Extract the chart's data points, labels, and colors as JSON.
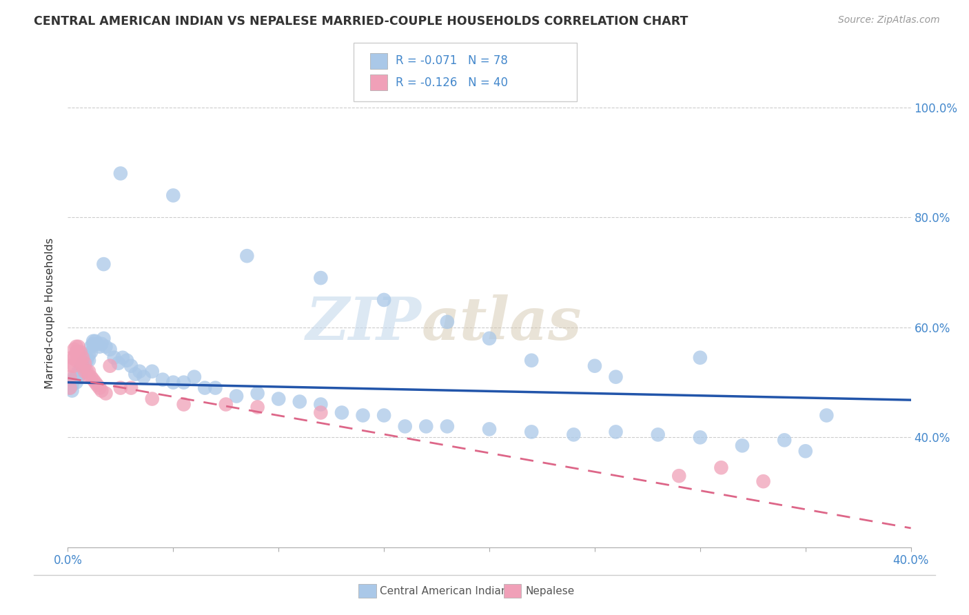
{
  "title": "CENTRAL AMERICAN INDIAN VS NEPALESE MARRIED-COUPLE HOUSEHOLDS CORRELATION CHART",
  "source": "Source: ZipAtlas.com",
  "ylabel": "Married-couple Households",
  "legend_blue_r": "-0.071",
  "legend_blue_n": "78",
  "legend_pink_r": "-0.126",
  "legend_pink_n": "40",
  "footer_blue": "Central American Indians",
  "footer_pink": "Nepalese",
  "blue_scatter_color": "#aac8e8",
  "pink_scatter_color": "#f0a0b8",
  "blue_line_color": "#2255aa",
  "pink_line_color": "#dd6688",
  "text_color_blue": "#4488cc",
  "watermark_zip": "ZIP",
  "watermark_atlas": "atlas",
  "blue_x": [
    0.001,
    0.002,
    0.002,
    0.003,
    0.003,
    0.004,
    0.004,
    0.005,
    0.005,
    0.006,
    0.006,
    0.007,
    0.007,
    0.008,
    0.008,
    0.009,
    0.009,
    0.01,
    0.01,
    0.011,
    0.011,
    0.012,
    0.012,
    0.013,
    0.014,
    0.015,
    0.016,
    0.017,
    0.018,
    0.02,
    0.022,
    0.024,
    0.026,
    0.028,
    0.03,
    0.032,
    0.034,
    0.036,
    0.04,
    0.045,
    0.05,
    0.055,
    0.06,
    0.065,
    0.07,
    0.08,
    0.09,
    0.1,
    0.11,
    0.12,
    0.13,
    0.14,
    0.15,
    0.16,
    0.17,
    0.18,
    0.2,
    0.22,
    0.24,
    0.26,
    0.28,
    0.3,
    0.32,
    0.34,
    0.36,
    0.017,
    0.025,
    0.05,
    0.085,
    0.12,
    0.15,
    0.18,
    0.2,
    0.22,
    0.25,
    0.26,
    0.3,
    0.35
  ],
  "blue_y": [
    0.49,
    0.485,
    0.495,
    0.505,
    0.51,
    0.5,
    0.51,
    0.51,
    0.52,
    0.515,
    0.525,
    0.53,
    0.535,
    0.53,
    0.54,
    0.54,
    0.545,
    0.54,
    0.55,
    0.555,
    0.565,
    0.57,
    0.575,
    0.575,
    0.57,
    0.565,
    0.57,
    0.58,
    0.565,
    0.56,
    0.545,
    0.535,
    0.545,
    0.54,
    0.53,
    0.515,
    0.52,
    0.51,
    0.52,
    0.505,
    0.5,
    0.5,
    0.51,
    0.49,
    0.49,
    0.475,
    0.48,
    0.47,
    0.465,
    0.46,
    0.445,
    0.44,
    0.44,
    0.42,
    0.42,
    0.42,
    0.415,
    0.41,
    0.405,
    0.41,
    0.405,
    0.4,
    0.385,
    0.395,
    0.44,
    0.715,
    0.88,
    0.84,
    0.73,
    0.69,
    0.65,
    0.61,
    0.58,
    0.54,
    0.53,
    0.51,
    0.545,
    0.375
  ],
  "pink_x": [
    0.001,
    0.001,
    0.002,
    0.002,
    0.003,
    0.003,
    0.003,
    0.004,
    0.004,
    0.004,
    0.005,
    0.005,
    0.005,
    0.006,
    0.006,
    0.007,
    0.007,
    0.008,
    0.008,
    0.009,
    0.01,
    0.01,
    0.011,
    0.012,
    0.013,
    0.014,
    0.015,
    0.016,
    0.018,
    0.02,
    0.025,
    0.03,
    0.04,
    0.055,
    0.075,
    0.09,
    0.12,
    0.29,
    0.31,
    0.33
  ],
  "pink_y": [
    0.49,
    0.51,
    0.53,
    0.545,
    0.53,
    0.545,
    0.56,
    0.54,
    0.555,
    0.565,
    0.545,
    0.555,
    0.565,
    0.54,
    0.555,
    0.53,
    0.545,
    0.52,
    0.535,
    0.52,
    0.51,
    0.52,
    0.51,
    0.505,
    0.5,
    0.495,
    0.49,
    0.485,
    0.48,
    0.53,
    0.49,
    0.49,
    0.47,
    0.46,
    0.46,
    0.455,
    0.445,
    0.33,
    0.345,
    0.32
  ],
  "xlim": [
    0.0,
    0.4
  ],
  "ylim": [
    0.2,
    1.05
  ],
  "ytick_vals": [
    0.4,
    0.6,
    0.8,
    1.0
  ],
  "ytick_labels": [
    "40.0%",
    "60.0%",
    "80.0%",
    "100.0%"
  ],
  "xtick_vals": [
    0.0,
    0.05,
    0.1,
    0.15,
    0.2,
    0.25,
    0.3,
    0.35,
    0.4
  ],
  "blue_trend": [
    0.0,
    0.4,
    0.5,
    0.468
  ],
  "pink_trend": [
    0.0,
    0.4,
    0.508,
    0.235
  ]
}
